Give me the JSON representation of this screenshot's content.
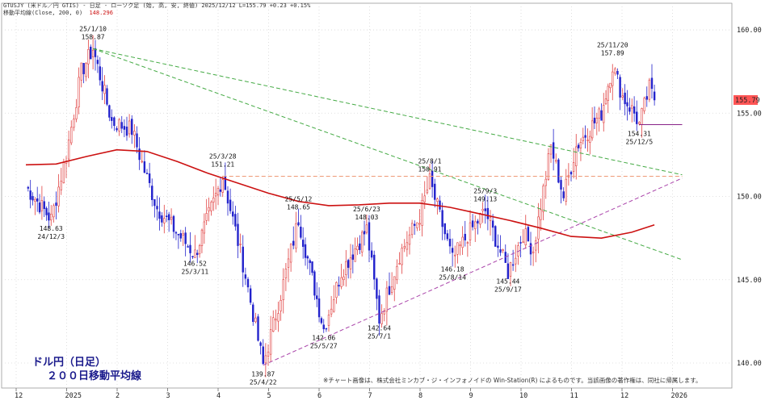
{
  "header": {
    "line1": "GTUSJY (米ドル／円 GTIS) - 日足 - ローソク足 (始, 高, 安, 終値)   2025/12/12  L=155.79  +0.23  +0.15%",
    "line2_prefix": "移動平均線(Close, 200, 0)",
    "line2_value": "148.296"
  },
  "title": {
    "line1": "ドル円（日足）",
    "line2": "２００日移動平均線"
  },
  "footnote": "※チャート画像は、株式会社ミンカブ・ジ・インフォノイドの Win-Station(R) によるものです。当該画像の著作権は、同社に帰属します。",
  "colors": {
    "up_candle": "#e04040",
    "down_candle": "#2222cc",
    "ma200": "#cc1111",
    "resistance": "#44aa44",
    "support": "#aa44aa",
    "horizontal_ref": "#ee9977",
    "price_tag": "#ff5555"
  },
  "chart_data": {
    "type": "candlestick",
    "y_axis": {
      "min": 138.5,
      "max": 161.6,
      "ticks": [
        "160.00",
        "155.00",
        "150.00",
        "145.00",
        "140.00"
      ]
    },
    "x_axis_labels": [
      "12",
      "2025",
      "2",
      "3",
      "4",
      "5",
      "6",
      "7",
      "8",
      "9",
      "10",
      "11",
      "12",
      "2026"
    ],
    "last_price_label": "155.79",
    "ma200_value": "148.296",
    "annotations": [
      {
        "date": "24/12/3",
        "price": "148.63"
      },
      {
        "date": "25/1/10",
        "price": "158.87"
      },
      {
        "date": "25/3/11",
        "price": "146.52"
      },
      {
        "date": "25/3/28",
        "price": "151.21"
      },
      {
        "date": "25/4/22",
        "price": "139.87"
      },
      {
        "date": "25/5/12",
        "price": "148.65"
      },
      {
        "date": "25/5/27",
        "price": "142.06"
      },
      {
        "date": "25/6/23",
        "price": "148.03"
      },
      {
        "date": "25/7/1",
        "price": "142.64"
      },
      {
        "date": "25/8/1",
        "price": "150.91"
      },
      {
        "date": "25/8/14",
        "price": "146.18"
      },
      {
        "date": "25/9/3",
        "price": "149.13"
      },
      {
        "date": "25/9/17",
        "price": "145.44"
      },
      {
        "date": "25/11/20",
        "price": "157.89"
      },
      {
        "date": "25/12/5",
        "price": "154.31"
      }
    ],
    "pivots": [
      {
        "m": 0.0,
        "p": 150.6
      },
      {
        "m": 0.5,
        "p": 148.63
      },
      {
        "m": 0.8,
        "p": 152.5
      },
      {
        "m": 1.1,
        "p": 157.5
      },
      {
        "m": 1.33,
        "p": 158.87
      },
      {
        "m": 1.7,
        "p": 154.5
      },
      {
        "m": 2.1,
        "p": 154.0
      },
      {
        "m": 2.3,
        "p": 152.0
      },
      {
        "m": 2.6,
        "p": 149.3
      },
      {
        "m": 3.35,
        "p": 146.52
      },
      {
        "m": 3.9,
        "p": 151.21
      },
      {
        "m": 4.3,
        "p": 146.0
      },
      {
        "m": 4.7,
        "p": 139.87
      },
      {
        "m": 5.0,
        "p": 143.5
      },
      {
        "m": 5.4,
        "p": 148.65
      },
      {
        "m": 5.9,
        "p": 142.06
      },
      {
        "m": 6.25,
        "p": 145.5
      },
      {
        "m": 6.75,
        "p": 148.03
      },
      {
        "m": 7.0,
        "p": 142.64
      },
      {
        "m": 7.4,
        "p": 146.5
      },
      {
        "m": 7.8,
        "p": 148.8
      },
      {
        "m": 8.0,
        "p": 150.91
      },
      {
        "m": 8.45,
        "p": 146.18
      },
      {
        "m": 8.75,
        "p": 147.7
      },
      {
        "m": 9.1,
        "p": 149.13
      },
      {
        "m": 9.55,
        "p": 145.44
      },
      {
        "m": 9.85,
        "p": 147.8
      },
      {
        "m": 10.05,
        "p": 146.8
      },
      {
        "m": 10.2,
        "p": 149.5
      },
      {
        "m": 10.4,
        "p": 153.0
      },
      {
        "m": 10.65,
        "p": 150.0
      },
      {
        "m": 10.9,
        "p": 153.0
      },
      {
        "m": 11.4,
        "p": 155.0
      },
      {
        "m": 11.62,
        "p": 157.89
      },
      {
        "m": 11.82,
        "p": 156.0
      },
      {
        "m": 12.05,
        "p": 155.0
      },
      {
        "m": 12.15,
        "p": 154.31
      },
      {
        "m": 12.35,
        "p": 156.5
      },
      {
        "m": 12.45,
        "p": 155.79
      }
    ],
    "ma200": [
      {
        "m": 0.0,
        "p": 151.9
      },
      {
        "m": 0.6,
        "p": 151.95
      },
      {
        "m": 1.2,
        "p": 152.4
      },
      {
        "m": 1.8,
        "p": 152.8
      },
      {
        "m": 2.4,
        "p": 152.7
      },
      {
        "m": 3.0,
        "p": 152.1
      },
      {
        "m": 3.6,
        "p": 151.4
      },
      {
        "m": 4.2,
        "p": 150.8
      },
      {
        "m": 4.8,
        "p": 150.2
      },
      {
        "m": 5.4,
        "p": 149.7
      },
      {
        "m": 6.0,
        "p": 149.45
      },
      {
        "m": 6.6,
        "p": 149.5
      },
      {
        "m": 7.2,
        "p": 149.6
      },
      {
        "m": 7.8,
        "p": 149.6
      },
      {
        "m": 8.4,
        "p": 149.35
      },
      {
        "m": 9.0,
        "p": 148.95
      },
      {
        "m": 9.6,
        "p": 148.55
      },
      {
        "m": 10.2,
        "p": 148.1
      },
      {
        "m": 10.8,
        "p": 147.6
      },
      {
        "m": 11.4,
        "p": 147.5
      },
      {
        "m": 12.0,
        "p": 147.85
      },
      {
        "m": 12.45,
        "p": 148.296
      }
    ],
    "trendlines": [
      {
        "kind": "resistance",
        "from": {
          "m": 1.33,
          "p": 158.87
        },
        "to": {
          "m": 13.0,
          "p": 151.3
        }
      },
      {
        "kind": "resistance",
        "from": {
          "m": 1.33,
          "p": 158.87
        },
        "to": {
          "m": 13.0,
          "p": 146.2
        }
      },
      {
        "kind": "support",
        "from": {
          "m": 4.7,
          "p": 139.87
        },
        "to": {
          "m": 13.0,
          "p": 151.1
        }
      },
      {
        "kind": "horizontal_ref",
        "from": {
          "m": 3.9,
          "p": 151.21
        },
        "to": {
          "m": 13.0,
          "p": 151.21
        }
      },
      {
        "kind": "low_mark",
        "from": {
          "m": 12.15,
          "p": 154.31
        },
        "to": {
          "m": 13.0,
          "p": 154.31
        }
      }
    ]
  }
}
